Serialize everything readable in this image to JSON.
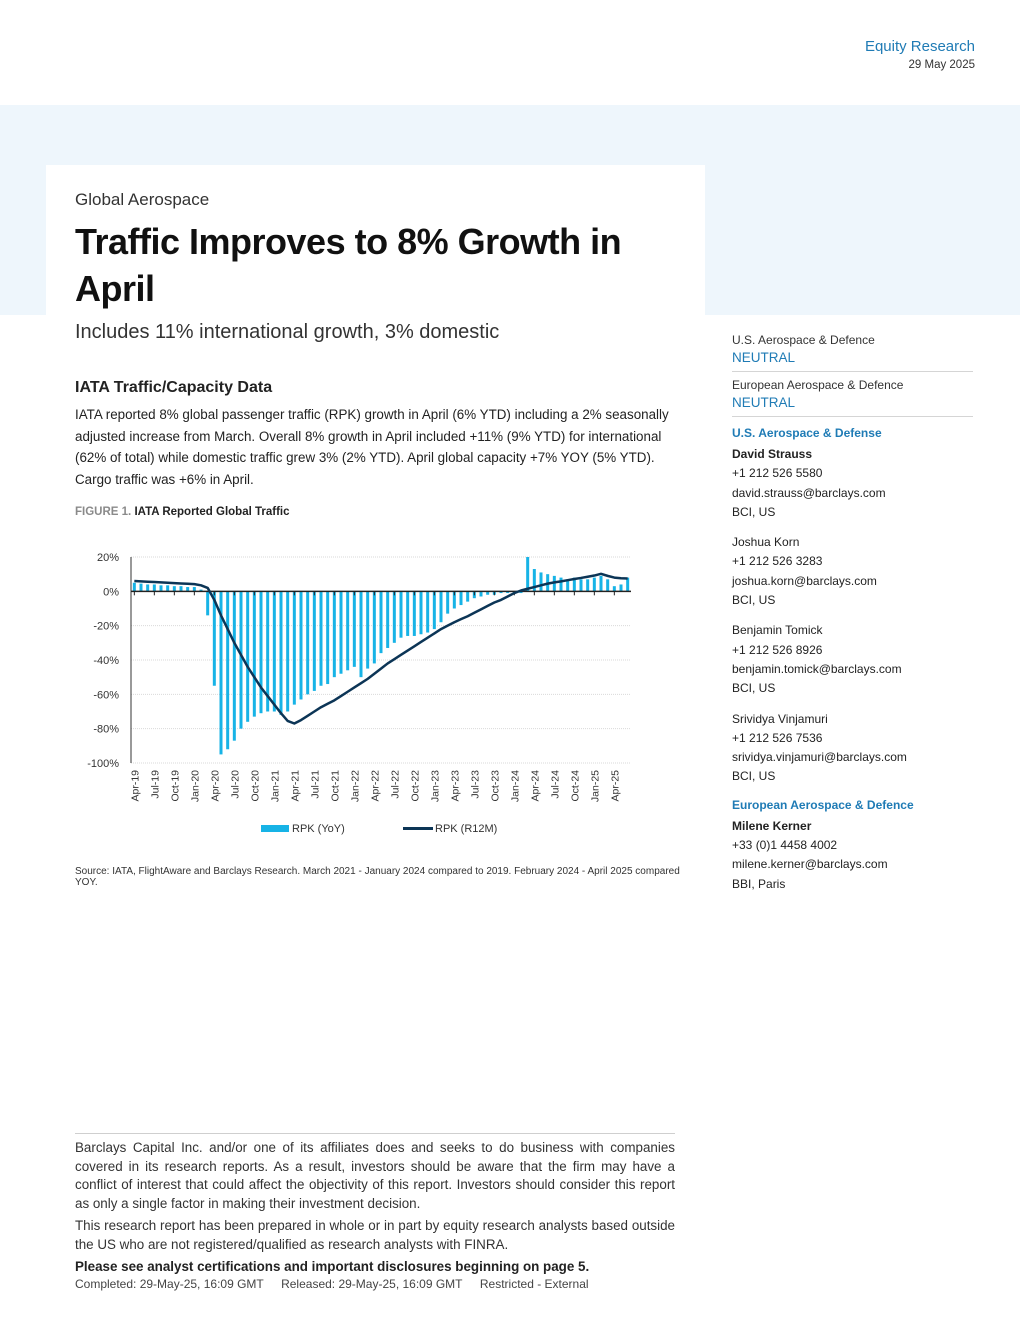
{
  "header": {
    "department": "Equity Research",
    "date": "29 May 2025"
  },
  "title_block": {
    "sector": "Global Aerospace",
    "title": "Traffic Improves to 8% Growth in April",
    "subtitle": "Includes 11% international growth, 3% domestic"
  },
  "section": {
    "heading": "IATA Traffic/Capacity Data",
    "body": "IATA reported 8% global passenger traffic (RPK) growth in April (6% YTD) including a 2% seasonally adjusted increase from March. Overall 8% growth in April included +11% (9% YTD) for international (62% of total) while domestic traffic grew 3% (2% YTD). April global capacity +7% YOY (5% YTD). Cargo traffic was +6% in April."
  },
  "figure": {
    "number": "FIGURE 1.",
    "title": "IATA Reported Global Traffic",
    "source": "Source: IATA, FlightAware and Barclays Research. March 2021 - January 2024 compared to 2019. February 2024 - April 2025 compared YOY."
  },
  "chart_data": {
    "type": "bar",
    "title": "",
    "xlabel": "",
    "ylabel": "",
    "ylim": [
      -100,
      20
    ],
    "yticks": [
      "20%",
      "0%",
      "-20%",
      "-40%",
      "-60%",
      "-80%",
      "-100%"
    ],
    "ytick_values": [
      20,
      0,
      -20,
      -40,
      -60,
      -80,
      -100
    ],
    "xtick_labels": [
      "Apr-19",
      "Jul-19",
      "Oct-19",
      "Jan-20",
      "Apr-20",
      "Jul-20",
      "Oct-20",
      "Jan-21",
      "Apr-21",
      "Jul-21",
      "Oct-21",
      "Jan-22",
      "Apr-22",
      "Jul-22",
      "Oct-22",
      "Jan-23",
      "Apr-23",
      "Jul-23",
      "Oct-23",
      "Jan-24",
      "Apr-24",
      "Jul-24",
      "Oct-24",
      "Jan-25",
      "Apr-25"
    ],
    "grid": true,
    "legend_position": "bottom",
    "colors": {
      "bars": "#17b3e6",
      "line": "#0c3556"
    },
    "series": [
      {
        "name": "RPK (YoY)",
        "type": "bar",
        "values": [
          5,
          4.5,
          4,
          4,
          3.5,
          3.5,
          3,
          3,
          2.5,
          2.5,
          1,
          -14,
          -55,
          -95,
          -92,
          -87,
          -80,
          -76,
          -73,
          -71,
          -70,
          -70,
          -72,
          -70,
          -66,
          -63,
          -60,
          -58,
          -55,
          -54,
          -50,
          -48,
          -46,
          -44,
          -50,
          -45,
          -42,
          -36,
          -33,
          -30,
          -27,
          -26,
          -26,
          -25,
          -24,
          -22,
          -18,
          -13,
          -10,
          -8,
          -6,
          -4,
          -3,
          -2,
          -2,
          -1,
          -1,
          -1,
          -1,
          20,
          13,
          11,
          10,
          9,
          8,
          7,
          8,
          7,
          7,
          8,
          9,
          7,
          3,
          4,
          8
        ]
      },
      {
        "name": "RPK (R12M)",
        "type": "line",
        "values": [
          6,
          5.8,
          5.6,
          5.4,
          5.2,
          5,
          4.8,
          4.6,
          4.4,
          4.2,
          3.5,
          2,
          -5,
          -14,
          -22,
          -30,
          -37,
          -44,
          -50,
          -56,
          -61,
          -66,
          -71,
          -75.5,
          -77,
          -75,
          -72.5,
          -70,
          -67.5,
          -65.5,
          -63.5,
          -61,
          -58.5,
          -56,
          -53.5,
          -51,
          -48,
          -45,
          -42,
          -39.5,
          -37,
          -34.5,
          -32,
          -29.5,
          -27,
          -24.5,
          -22,
          -20,
          -18,
          -16.2,
          -14.5,
          -12.5,
          -10.5,
          -8.5,
          -6.5,
          -5,
          -3,
          -1,
          0.5,
          1.5,
          2.5,
          3.5,
          4.5,
          5.2,
          5.8,
          6.5,
          7.2,
          7.8,
          8.5,
          9.2,
          10.2,
          9,
          8,
          7.6,
          7.5
        ]
      }
    ]
  },
  "sidebar": {
    "ratings": [
      {
        "label": "U.S. Aerospace & Defence",
        "value": "NEUTRAL"
      },
      {
        "label": "European Aerospace & Defence",
        "value": "NEUTRAL"
      }
    ],
    "teams": [
      {
        "heading": "U.S. Aerospace & Defense",
        "analysts": [
          {
            "name": "David Strauss",
            "phone": "+1 212 526 5580",
            "email": "david.strauss@barclays.com",
            "entity": "BCI, US"
          },
          {
            "name": "Joshua Korn",
            "phone": "+1 212 526 3283",
            "email": "joshua.korn@barclays.com",
            "entity": "BCI, US"
          },
          {
            "name": "Benjamin Tomick",
            "phone": "+1 212 526 8926",
            "email": "benjamin.tomick@barclays.com",
            "entity": "BCI, US"
          },
          {
            "name": "Srividya Vinjamuri",
            "phone": "+1 212 526 7536",
            "email": "srividya.vinjamuri@barclays.com",
            "entity": "BCI, US"
          }
        ]
      },
      {
        "heading": "European Aerospace & Defence",
        "analysts": [
          {
            "name": "Milene Kerner",
            "phone": "+33 (0)1 4458 4002",
            "email": "milene.kerner@barclays.com",
            "entity": "BBI, Paris"
          }
        ]
      }
    ]
  },
  "footer": {
    "disclaimer1": "Barclays Capital Inc. and/or one of its affiliates does and seeks to do business with companies covered in its research reports. As a result, investors should be aware that the firm may have a conflict of interest that could affect the objectivity of this report. Investors should consider this report as only a single factor in making their investment decision.",
    "disclaimer2": "This research report has been prepared in whole or in part by equity research analysts based outside the US who are not registered/qualified as research analysts with FINRA.",
    "disclosure_note": "Please see analyst certifications and important disclosures beginning on page 5.",
    "completed": "Completed: 29-May-25, 16:09 GMT",
    "released": "Released: 29-May-25, 16:09 GMT",
    "classification": "Restricted - External"
  }
}
